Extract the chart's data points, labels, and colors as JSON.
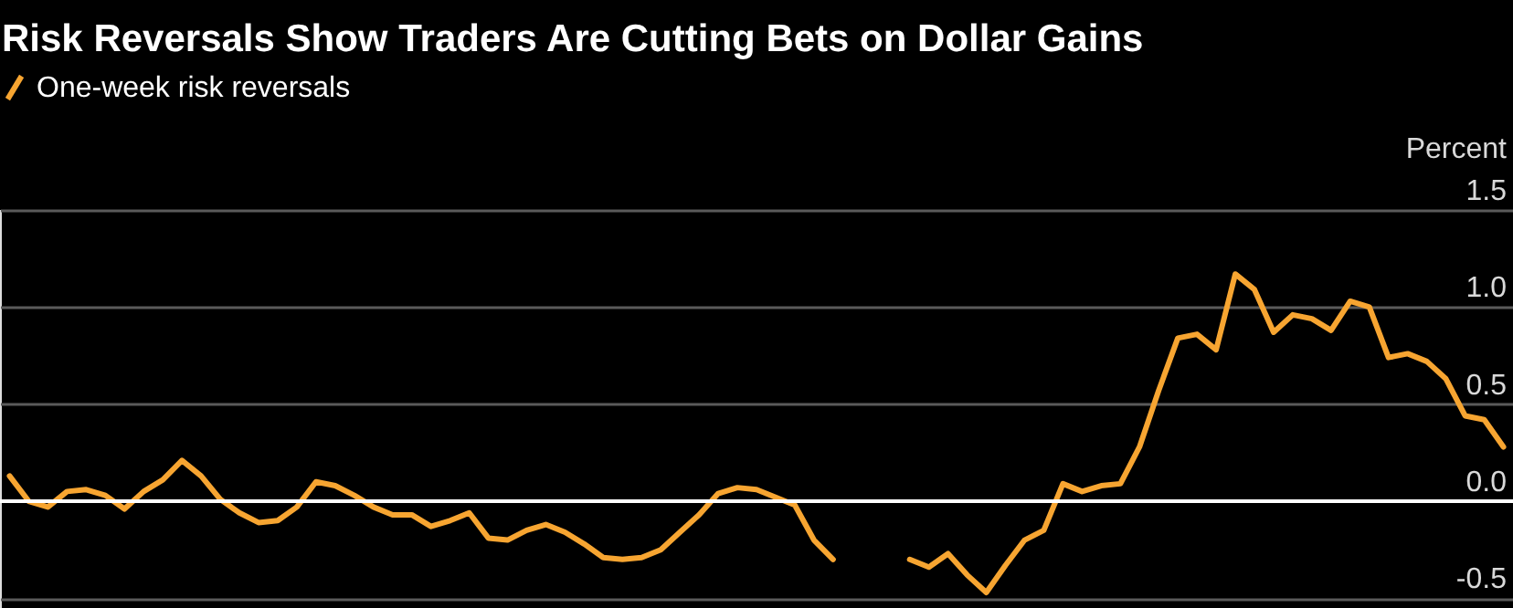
{
  "chart_data": {
    "type": "line",
    "title": "Risk Reversals Show Traders Are Cutting Bets on Dollar Gains",
    "ylabel": "Percent",
    "legend": "top left",
    "grid": "y",
    "tick_labels": "y",
    "marker": "none",
    "line_style": "solid",
    "categories": [
      null,
      null,
      null,
      null,
      null,
      null,
      null,
      null,
      null,
      null,
      null,
      null,
      null,
      null,
      null,
      null,
      null,
      null,
      null,
      null,
      null,
      null,
      null,
      null,
      null,
      null,
      null,
      null,
      null,
      null,
      null,
      null,
      null,
      null,
      null,
      null,
      null,
      null,
      null,
      null,
      null,
      null,
      null,
      null,
      null,
      null,
      null,
      null,
      null,
      null,
      null,
      null,
      null,
      null,
      null,
      null,
      null,
      null,
      null,
      null,
      null,
      null,
      null,
      null,
      null,
      null,
      null,
      null,
      null,
      null,
      null,
      null,
      null,
      null,
      null,
      null,
      null,
      null,
      null
    ],
    "ylim": [
      -0.55,
      1.5
    ],
    "yticks": [
      {
        "value": -0.5,
        "label": "-0.5"
      },
      {
        "value": 0,
        "label": "0.0"
      },
      {
        "value": 0.5,
        "label": "0.5"
      },
      {
        "value": 1.0,
        "label": "1.0"
      },
      {
        "value": 1.5,
        "label": "1.5"
      }
    ],
    "ref_lines": [
      {
        "axis": "y",
        "value": 0,
        "label": null,
        "color": "#ffffff"
      }
    ],
    "series": [
      {
        "name": "One-week risk reversals",
        "color": "#f7a531",
        "values": [
          0.13,
          0.0,
          -0.03,
          0.05,
          0.06,
          0.03,
          -0.04,
          0.05,
          0.11,
          0.21,
          0.13,
          0.01,
          -0.06,
          -0.11,
          -0.1,
          -0.03,
          0.1,
          0.08,
          0.03,
          -0.03,
          -0.07,
          -0.07,
          -0.13,
          -0.1,
          -0.06,
          -0.19,
          -0.2,
          -0.15,
          -0.12,
          -0.16,
          -0.22,
          -0.29,
          -0.3,
          -0.29,
          -0.25,
          -0.16,
          -0.07,
          0.04,
          0.07,
          0.06,
          0.02,
          -0.02,
          -0.2,
          -0.3,
          null,
          null,
          null,
          null,
          null,
          null,
          null,
          null,
          null,
          null,
          null,
          null,
          null,
          null,
          null,
          null,
          null,
          null,
          null,
          null,
          null,
          null,
          null,
          null,
          null,
          null,
          null,
          null,
          null,
          null,
          null,
          null,
          null,
          null,
          null
        ]
      },
      {
        "color": "#f7a531",
        "values": [
          null,
          null,
          null,
          null,
          null,
          null,
          null,
          null,
          null,
          null,
          null,
          null,
          null,
          null,
          null,
          null,
          null,
          null,
          null,
          null,
          null,
          null,
          null,
          null,
          null,
          null,
          null,
          null,
          null,
          null,
          null,
          null,
          null,
          null,
          null,
          null,
          null,
          null,
          null,
          null,
          null,
          null,
          null,
          null,
          null,
          null,
          null,
          -0.3,
          -0.34,
          -0.27,
          -0.38,
          -0.47,
          -0.33,
          -0.2,
          -0.15,
          0.09,
          0.05,
          0.08,
          0.09,
          0.28,
          0.57,
          0.84,
          0.86,
          0.78,
          1.17,
          1.09,
          0.87,
          0.96,
          0.94,
          0.88,
          1.03,
          1.0,
          0.74,
          0.76,
          0.72,
          0.63,
          0.44,
          0.42,
          0.28
        ]
      }
    ]
  }
}
